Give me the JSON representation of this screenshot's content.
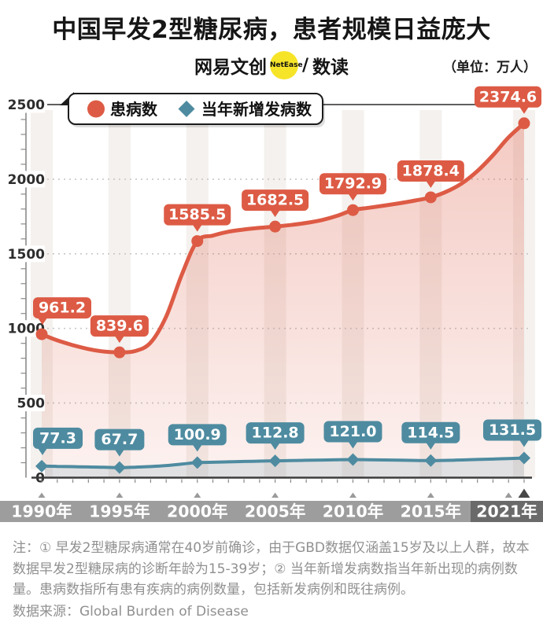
{
  "title": "中国早发2型糖尿病，患者规模日益庞大",
  "brand": {
    "creator": "网易文创",
    "badge": "NetEase",
    "separator": "/",
    "studio": "数读"
  },
  "unit_label": "（单位：万人）",
  "legend": [
    {
      "label": "患病数",
      "marker": "circle",
      "color": "#dd5b45"
    },
    {
      "label": "当年新增发病数",
      "marker": "diamond",
      "color": "#4e8ba0"
    }
  ],
  "notes": "注：① 早发2型糖尿病通常在40岁前确诊，由于GBD数据仅涵盖15岁及以上人群，故本数据早发2型糖尿病的诊断年龄为15-39岁；② 当年新增发病数指当年新出现的病例数量。患病数指所有患有疾病的病例数量，包括新发病例和既往病例。",
  "source": "数据来源：Global Burden of Disease",
  "colors": {
    "accent_red": "#dd5b45",
    "accent_teal": "#4e8ba0",
    "stripe": "#f4f1ee",
    "grid_dotted": "#c8c8c8",
    "axis_dark": "#3c3c3c",
    "axis_gray": "#8a8a8a",
    "year_bar": "#9d9d9d",
    "year_bar_active": "#6a6a6a",
    "triangle_small": "#9a9a9a",
    "triangle_big": "#474747",
    "note_gray": "#909090",
    "badge_yellow": "#f6e428"
  },
  "chart_data": {
    "type": "line",
    "title": "中国早发2型糖尿病，患者规模日益庞大",
    "unit": "万人",
    "x_labels": [
      "1990年",
      "1995年",
      "2000年",
      "2005年",
      "2010年",
      "2015年",
      "2021年"
    ],
    "x_years": [
      1990,
      1995,
      2000,
      2005,
      2010,
      2015,
      2021
    ],
    "x_range_years": [
      1990,
      2021
    ],
    "ylim": [
      0,
      2500
    ],
    "yticks": [
      0,
      500,
      1000,
      1500,
      2000,
      2500
    ],
    "grid": "dotted horizontal",
    "legend_position": "top-left",
    "series": [
      {
        "name": "患病数",
        "marker": "circle",
        "color": "#dd5b45",
        "values": [
          961.2,
          839.6,
          1585.5,
          1682.5,
          1792.9,
          1878.4,
          2374.6
        ]
      },
      {
        "name": "当年新增发病数",
        "marker": "diamond",
        "color": "#4e8ba0",
        "values": [
          77.3,
          67.7,
          100.9,
          112.8,
          121.0,
          114.5,
          131.5
        ]
      }
    ],
    "yearly_curve_estimate": {
      "years_start": 1990,
      "患病数": [
        961.2,
        920,
        888,
        862,
        845,
        839.6,
        848,
        905,
        1080,
        1360,
        1585.5,
        1622,
        1648,
        1663,
        1674,
        1682.5,
        1693,
        1707,
        1726,
        1755,
        1792.9,
        1808,
        1823,
        1839,
        1857,
        1878.4,
        1916,
        1972,
        2055,
        2160,
        2280,
        2374.6
      ],
      "当年新增发病数": [
        77.3,
        75.5,
        73.5,
        71.5,
        69.5,
        67.7,
        70,
        74.5,
        81,
        91,
        100.9,
        103.5,
        106,
        108.5,
        110.5,
        112.8,
        114.5,
        116.5,
        118,
        119.5,
        121.0,
        120,
        118.5,
        117,
        115.5,
        114.5,
        116,
        118.5,
        121.5,
        124.5,
        128,
        131.5
      ]
    },
    "highlight_year": 2021
  }
}
